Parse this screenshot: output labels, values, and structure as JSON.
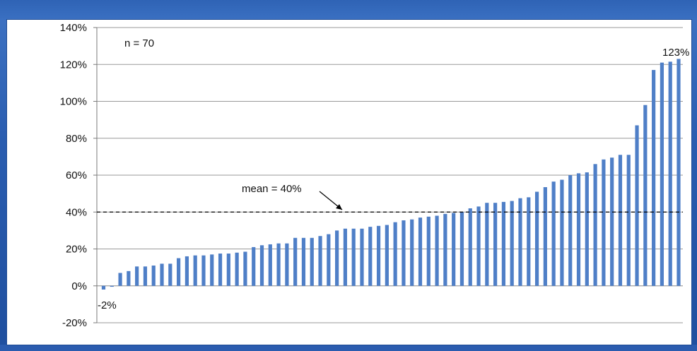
{
  "chart_data": {
    "type": "bar",
    "title": "",
    "xlabel": "",
    "ylabel": "",
    "ylim": [
      -0.2,
      1.4
    ],
    "yticks": [
      -0.2,
      0.0,
      0.2,
      0.4,
      0.6,
      0.8,
      1.0,
      1.2,
      1.4
    ],
    "ytick_labels": [
      "-20%",
      "0%",
      "20%",
      "40%",
      "60%",
      "80%",
      "100%",
      "120%",
      "140%"
    ],
    "grid": "horizontal",
    "bar_color": "#4f7fc7",
    "values": [
      -0.02,
      -0.005,
      0.07,
      0.08,
      0.105,
      0.105,
      0.11,
      0.12,
      0.12,
      0.15,
      0.16,
      0.165,
      0.165,
      0.17,
      0.175,
      0.175,
      0.18,
      0.185,
      0.21,
      0.22,
      0.225,
      0.23,
      0.23,
      0.26,
      0.26,
      0.26,
      0.27,
      0.28,
      0.3,
      0.31,
      0.31,
      0.31,
      0.32,
      0.325,
      0.33,
      0.345,
      0.355,
      0.36,
      0.37,
      0.375,
      0.38,
      0.39,
      0.395,
      0.4,
      0.42,
      0.43,
      0.45,
      0.45,
      0.455,
      0.46,
      0.475,
      0.48,
      0.51,
      0.535,
      0.565,
      0.575,
      0.6,
      0.61,
      0.615,
      0.66,
      0.685,
      0.695,
      0.71,
      0.71,
      0.87,
      0.98,
      1.17,
      1.21,
      1.215,
      1.23
    ],
    "reference_line": {
      "value": 0.4,
      "style": "dashed",
      "label": "mean = 40%"
    },
    "annotations": {
      "n_label": "n = 70",
      "min_label": "-2%",
      "max_label": "123%"
    }
  }
}
